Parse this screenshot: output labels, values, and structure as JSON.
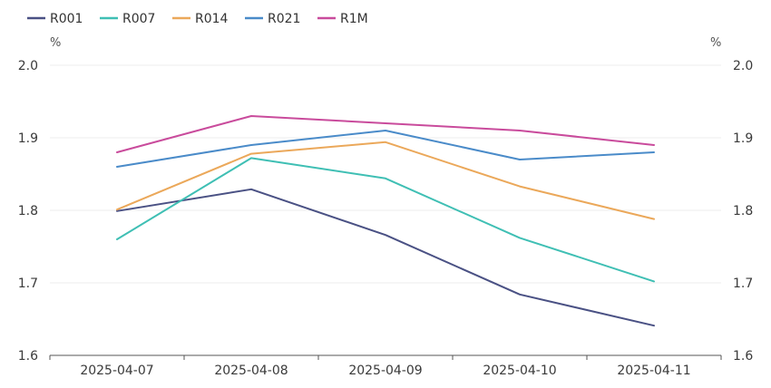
{
  "chart_data": {
    "type": "line",
    "categories": [
      "2025-04-07",
      "2025-04-08",
      "2025-04-09",
      "2025-04-10",
      "2025-04-11"
    ],
    "series": [
      {
        "name": "R001",
        "color": "#4a5184",
        "values": [
          1.799,
          1.829,
          1.766,
          1.684,
          1.641
        ]
      },
      {
        "name": "R007",
        "color": "#3fbfb4",
        "values": [
          1.76,
          1.872,
          1.844,
          1.762,
          1.702
        ]
      },
      {
        "name": "R014",
        "color": "#eba85a",
        "values": [
          1.801,
          1.878,
          1.894,
          1.833,
          1.788
        ]
      },
      {
        "name": "R021",
        "color": "#4a8bc9",
        "values": [
          1.86,
          1.89,
          1.91,
          1.87,
          1.88
        ]
      },
      {
        "name": "R1M",
        "color": "#c94b9c",
        "values": [
          1.88,
          1.93,
          1.92,
          1.91,
          1.89
        ]
      }
    ],
    "ylim": [
      1.6,
      2.0
    ],
    "yticks": [
      "1.6",
      "1.7",
      "1.8",
      "1.9",
      "2.0"
    ],
    "y_unit_left": "%",
    "y_unit_right": "%",
    "grid": "horizontal",
    "legend_position": "top-left"
  }
}
